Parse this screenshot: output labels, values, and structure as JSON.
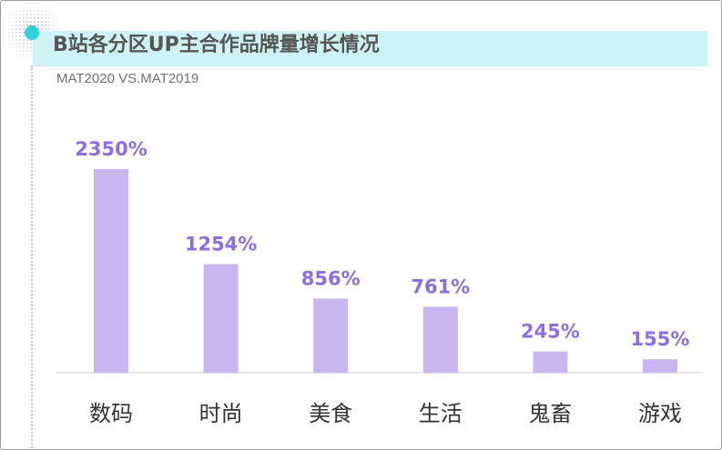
{
  "colors": {
    "bar": "#c7b6ef",
    "value_label": "#8d6ee0",
    "title_band": "#cdf3f6",
    "accent_dot": "#2fd3d9",
    "pattern_dot": "#8a5cd8"
  },
  "chart_data": {
    "type": "bar",
    "title": "B站各分区UP主合作品牌量增长情况",
    "subtitle": "MAT2020 VS.MAT2019",
    "xlabel": "",
    "ylabel": "",
    "ylim": [
      0,
      2350
    ],
    "grid": false,
    "categories": [
      "数码",
      "时尚",
      "美食",
      "生活",
      "鬼畜",
      "游戏"
    ],
    "values": [
      2350,
      1254,
      856,
      761,
      245,
      155
    ],
    "value_labels": [
      "2350%",
      "1254%",
      "856%",
      "761%",
      "245%",
      "155%"
    ]
  }
}
